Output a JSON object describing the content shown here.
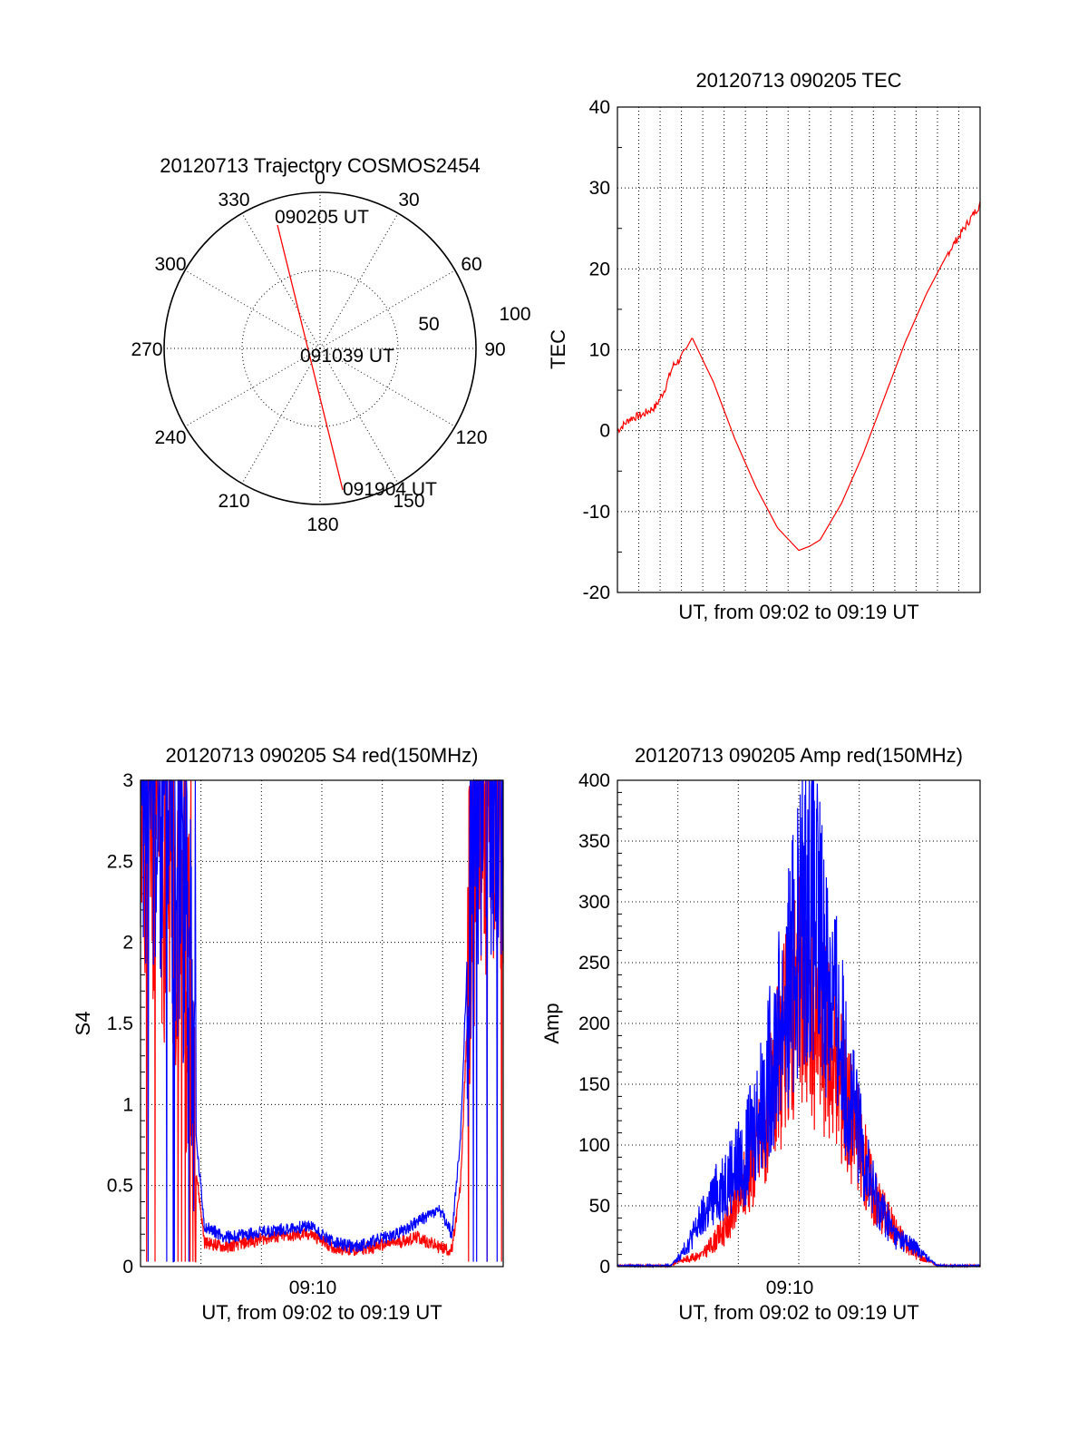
{
  "colors": {
    "red": "#ff0000",
    "blue": "#0000ff",
    "axis": "#000000"
  },
  "chart_data": [
    {
      "id": "polar",
      "type": "scatter",
      "title": "20120713 Trajectory COSMOS2454",
      "angle_labels": [
        "0",
        "30",
        "60",
        "90",
        "120",
        "150",
        "180",
        "210",
        "240",
        "270",
        "300",
        "330"
      ],
      "radial_labels": [
        "50",
        "100"
      ],
      "point_labels": [
        "090205 UT",
        "091039 UT",
        "091904 UT"
      ],
      "trajectory": {
        "start": {
          "azimuth_deg": 345,
          "elevation_deg": 5
        },
        "end": {
          "azimuth_deg": 170,
          "elevation_deg": 10
        }
      }
    },
    {
      "id": "tec",
      "type": "line",
      "title": "20120713 090205 TEC",
      "xlabel": "UT, from 09:02 to 09:19 UT",
      "ylabel": "TEC",
      "ylim": [
        -20,
        40
      ],
      "yticks": [
        "-20",
        "-10",
        "0",
        "10",
        "20",
        "30",
        "40"
      ],
      "x_minutes": [
        0,
        0.6,
        1.2,
        1.8,
        2.2,
        2.6,
        3.0,
        3.5,
        4.5,
        5.5,
        6.5,
        7.5,
        8.5,
        9.0,
        9.5,
        10.5,
        11.5,
        12.5,
        13.5,
        14.5,
        15.5,
        16.5,
        17.0
      ],
      "tec": [
        0,
        1.5,
        2,
        3,
        5,
        8,
        9,
        11.5,
        6,
        -1,
        -7,
        -12,
        -14.8,
        -14.3,
        -13.5,
        -9,
        -3,
        4,
        11,
        17,
        22,
        26,
        28
      ],
      "series": [
        {
          "values": "tec"
        }
      ]
    },
    {
      "id": "s4",
      "type": "line",
      "title": "20120713 090205 S4 red(150MHz)",
      "xlabel": "UT, from 09:02 to 09:19 UT",
      "ylabel": "S4",
      "ylim": [
        0,
        3
      ],
      "yticks": [
        "0",
        "0.5",
        "1",
        "1.5",
        "2",
        "2.5",
        "3"
      ],
      "xtick_label": "09:10",
      "x_minutes": [
        0,
        1.0,
        2.0,
        2.3,
        2.6,
        3.0,
        4,
        6,
        8,
        9,
        10,
        12,
        13,
        14,
        14.6,
        15.0,
        15.4,
        15.8,
        17.0
      ],
      "series": [
        {
          "values": [
            3.0,
            2.6,
            2.2,
            1.5,
            0.6,
            0.15,
            0.12,
            0.18,
            0.2,
            0.12,
            0.1,
            0.15,
            0.18,
            0.12,
            0.1,
            0.5,
            1.8,
            3.0,
            3.0
          ]
        },
        {
          "values": [
            3.0,
            2.8,
            2.4,
            1.8,
            0.8,
            0.25,
            0.18,
            0.22,
            0.25,
            0.15,
            0.12,
            0.2,
            0.28,
            0.35,
            0.2,
            0.8,
            2.2,
            3.0,
            3.0
          ]
        }
      ]
    },
    {
      "id": "amp",
      "type": "line",
      "title": "20120713 090205 Amp red(150MHz)",
      "xlabel": "UT, from 09:02 to 09:19 UT",
      "ylabel": "Amp",
      "ylim": [
        0,
        400
      ],
      "yticks": [
        "0",
        "50",
        "100",
        "150",
        "200",
        "250",
        "300",
        "350",
        "400"
      ],
      "xtick_label": "09:10",
      "x_minutes": [
        0,
        2.5,
        3.0,
        4.0,
        5.0,
        6.0,
        7.0,
        8.0,
        8.5,
        9.0,
        10.0,
        11.0,
        12.0,
        13.0,
        14.0,
        15.0,
        17.0
      ],
      "series": [
        {
          "values": [
            0,
            0,
            5,
            10,
            30,
            70,
            120,
            200,
            230,
            210,
            180,
            120,
            60,
            30,
            10,
            0,
            0
          ]
        },
        {
          "values": [
            0,
            0,
            10,
            40,
            70,
            90,
            150,
            230,
            280,
            300,
            230,
            130,
            60,
            25,
            15,
            0,
            0
          ]
        }
      ]
    }
  ]
}
